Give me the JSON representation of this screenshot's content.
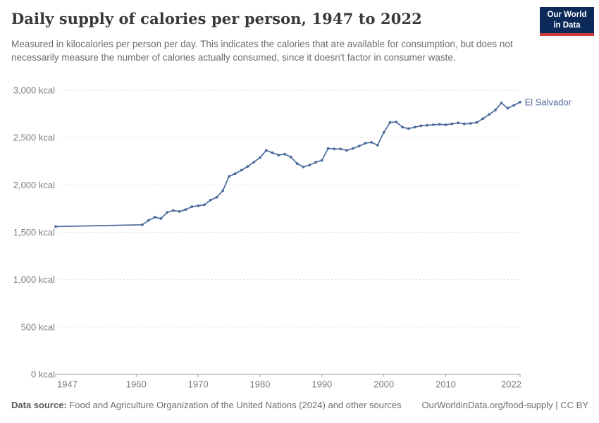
{
  "header": {
    "title": "Daily supply of calories per person, 1947 to 2022",
    "subtitle": "Measured in kilocalories per person per day. This indicates the calories that are available for consumption, but does not necessarily measure the number of calories actually consumed, since it doesn't factor in consumer waste.",
    "logo": {
      "line1": "Our World",
      "line2": "in Data"
    }
  },
  "chart_data": {
    "type": "line",
    "title": "Daily supply of calories per person, 1947 to 2022",
    "xlabel": "",
    "ylabel": "",
    "xlim": [
      1947,
      2022
    ],
    "ylim": [
      0,
      3000
    ],
    "x_ticks": [
      1947,
      1960,
      1970,
      1980,
      1990,
      2000,
      2010,
      2022
    ],
    "y_ticks": [
      0,
      500,
      1000,
      1500,
      2000,
      2500,
      3000
    ],
    "y_tick_suffix": " kcal",
    "grid": "horizontal-dashed",
    "legend_position": "end-of-line",
    "series": [
      {
        "name": "El Salvador",
        "color": "#4c6a9c",
        "x": [
          1947,
          1961,
          1962,
          1963,
          1964,
          1965,
          1966,
          1967,
          1968,
          1969,
          1970,
          1971,
          1972,
          1973,
          1974,
          1975,
          1976,
          1977,
          1978,
          1979,
          1980,
          1981,
          1982,
          1983,
          1984,
          1985,
          1986,
          1987,
          1988,
          1989,
          1990,
          1991,
          1992,
          1993,
          1994,
          1995,
          1996,
          1997,
          1998,
          1999,
          2000,
          2001,
          2002,
          2003,
          2004,
          2005,
          2006,
          2007,
          2008,
          2009,
          2010,
          2011,
          2012,
          2013,
          2014,
          2015,
          2016,
          2017,
          2018,
          2019,
          2020,
          2021,
          2022
        ],
        "values": [
          1560,
          1580,
          1625,
          1660,
          1645,
          1710,
          1730,
          1720,
          1740,
          1770,
          1780,
          1790,
          1840,
          1870,
          1940,
          2090,
          2120,
          2155,
          2195,
          2240,
          2290,
          2365,
          2340,
          2315,
          2325,
          2295,
          2225,
          2190,
          2210,
          2240,
          2260,
          2385,
          2380,
          2380,
          2365,
          2385,
          2410,
          2440,
          2450,
          2420,
          2555,
          2660,
          2665,
          2610,
          2595,
          2610,
          2625,
          2630,
          2635,
          2640,
          2635,
          2645,
          2655,
          2645,
          2650,
          2660,
          2700,
          2745,
          2790,
          2865,
          2810,
          2840,
          2875
        ]
      }
    ]
  },
  "footer": {
    "datasource_label": "Data source:",
    "datasource_text": " Food and Agriculture Organization of the United Nations (2024) and other sources",
    "attribution": "OurWorldinData.org/food-supply | CC BY"
  },
  "colors": {
    "line": "#4c6a9c",
    "logo_background": "#0b2a59",
    "logo_red_bar": "#cc3b3b",
    "grid_line": "#dddddd",
    "axis_line": "#9b9b9b",
    "tick_text": "#7d7d7d",
    "title_text": "#383838",
    "subtitle_text": "#6d6d6d"
  }
}
